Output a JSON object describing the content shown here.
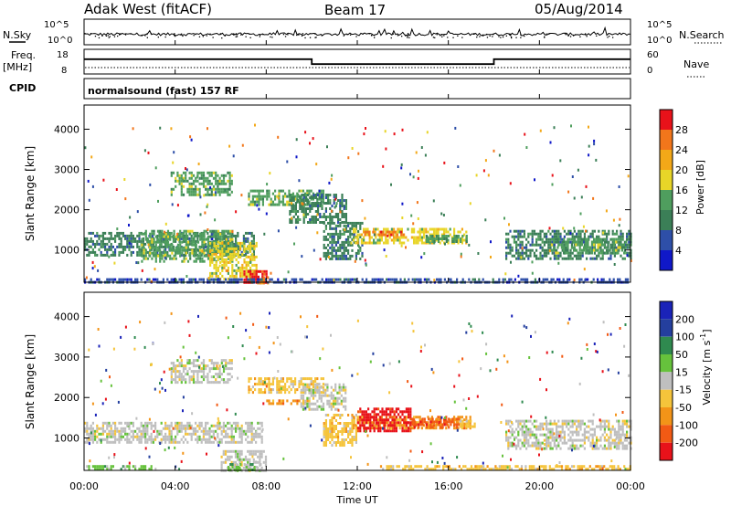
{
  "header": {
    "title": "Adak West (fitACF)",
    "beam": "Beam 17",
    "date": "05/Aug/2014"
  },
  "top_panels": {
    "nsky_label": "N.Sky",
    "nsearch_label": "N.Search",
    "freq_label": "Freq.",
    "freq_unit": "[MHz]",
    "nave_label": "Nave",
    "cpid_label": "CPID",
    "cpid_value": "normalsound (fast) 157 RF",
    "noise_ticks": [
      "10^5",
      "10^0"
    ],
    "freq_ticks": [
      "18",
      "8"
    ],
    "nave_ticks": [
      "60",
      "0"
    ],
    "freq_mhz": [
      {
        "start": "00:00",
        "end": "10:00",
        "value": 14
      },
      {
        "start": "10:00",
        "end": "18:00",
        "value": 11
      },
      {
        "start": "18:00",
        "end": "24:00",
        "value": 14
      }
    ]
  },
  "colors": {
    "power_scale": [
      "#1018c8",
      "#2e4fa8",
      "#3b7f57",
      "#4f9e5e",
      "#e8d528",
      "#f3a818",
      "#f2761b",
      "#e8121a"
    ],
    "velocity_scale": [
      "#e8121a",
      "#f25a14",
      "#f39418",
      "#f5c43b",
      "#bfbfbf",
      "#66c23c",
      "#2f8a4f",
      "#243f9e",
      "#1a23b8"
    ]
  },
  "chart_data": [
    {
      "type": "heatmap",
      "name": "power",
      "xlabel": "Time UT",
      "ylabel": "Slant Range [km]",
      "x_ticks": [
        "00:00",
        "04:00",
        "08:00",
        "12:00",
        "16:00",
        "20:00",
        "00:00"
      ],
      "x_range_hours": [
        0,
        24
      ],
      "y_ticks": [
        1000,
        2000,
        3000,
        4000
      ],
      "y_range_km": [
        200,
        4600
      ],
      "colorbar_label": "Power [dB]",
      "colorbar_ticks": [
        "4",
        "8",
        "12",
        "16",
        "20",
        "24",
        "28"
      ],
      "regions": [
        {
          "t0": 0.0,
          "t1": 7.5,
          "r0": 900,
          "r1": 1450,
          "level": 2
        },
        {
          "t0": 2.5,
          "t1": 6.5,
          "r0": 700,
          "r1": 1500,
          "level": 3
        },
        {
          "t0": 5.5,
          "t1": 7.6,
          "r0": 300,
          "r1": 1200,
          "level": 4
        },
        {
          "t0": 7.0,
          "t1": 8.0,
          "r0": 200,
          "r1": 500,
          "level": 7
        },
        {
          "t0": 7.5,
          "t1": 8.2,
          "r0": 200,
          "r1": 350,
          "level": 6
        },
        {
          "t0": 3.8,
          "t1": 6.5,
          "r0": 2400,
          "r1": 2950,
          "level": 3
        },
        {
          "t0": 7.2,
          "t1": 10.5,
          "r0": 2100,
          "r1": 2500,
          "level": 3
        },
        {
          "t0": 9.0,
          "t1": 11.5,
          "r0": 1700,
          "r1": 2400,
          "level": 2
        },
        {
          "t0": 10.5,
          "t1": 12.2,
          "r0": 800,
          "r1": 1700,
          "level": 2
        },
        {
          "t0": 11.8,
          "t1": 16.8,
          "r0": 1200,
          "r1": 1550,
          "level": 4
        },
        {
          "t0": 12.3,
          "t1": 14.0,
          "r0": 1350,
          "r1": 1480,
          "level": 6
        },
        {
          "t0": 15.0,
          "t1": 16.8,
          "r0": 1180,
          "r1": 1380,
          "level": 3
        },
        {
          "t0": 18.5,
          "t1": 24.0,
          "r0": 800,
          "r1": 1500,
          "level": 2
        },
        {
          "t0": 20.5,
          "t1": 23.8,
          "r0": 900,
          "r1": 1300,
          "level": 3
        },
        {
          "t0": 0.0,
          "t1": 24.0,
          "r0": 200,
          "r1": 300,
          "level": 1
        }
      ]
    },
    {
      "type": "heatmap",
      "name": "velocity",
      "xlabel": "Time UT",
      "ylabel": "Slant Range [km]",
      "x_ticks": [
        "00:00",
        "04:00",
        "08:00",
        "12:00",
        "16:00",
        "20:00",
        "00:00"
      ],
      "x_range_hours": [
        0,
        24
      ],
      "y_ticks": [
        1000,
        2000,
        3000,
        4000
      ],
      "y_range_km": [
        200,
        4600
      ],
      "colorbar_label_main": "Velocity [m s",
      "colorbar_label_exp": "-1",
      "colorbar_label_close": "]",
      "colorbar_ticks": [
        "200",
        "100",
        "50",
        "15",
        "-15",
        "-50",
        "-100",
        "-200"
      ],
      "regions": [
        {
          "t0": 0.0,
          "t1": 7.8,
          "r0": 900,
          "r1": 1400,
          "level": 4
        },
        {
          "t0": 3.8,
          "t1": 6.5,
          "r0": 2400,
          "r1": 2950,
          "level": 4
        },
        {
          "t0": 6.0,
          "t1": 8.0,
          "r0": 200,
          "r1": 700,
          "level": 4
        },
        {
          "t0": 6.3,
          "t1": 7.8,
          "r0": 200,
          "r1": 380,
          "level": 5
        },
        {
          "t0": 0.0,
          "t1": 3.0,
          "r0": 200,
          "r1": 330,
          "level": 5
        },
        {
          "t0": 7.2,
          "t1": 10.5,
          "r0": 2150,
          "r1": 2500,
          "level": 3
        },
        {
          "t0": 8.0,
          "t1": 9.8,
          "r0": 1850,
          "r1": 1950,
          "level": 2
        },
        {
          "t0": 9.5,
          "t1": 11.5,
          "r0": 1700,
          "r1": 2350,
          "level": 4
        },
        {
          "t0": 10.5,
          "t1": 12.0,
          "r0": 800,
          "r1": 1600,
          "level": 3
        },
        {
          "t0": 11.8,
          "t1": 17.0,
          "r0": 1250,
          "r1": 1550,
          "level": 2
        },
        {
          "t0": 12.0,
          "t1": 14.3,
          "r0": 1200,
          "r1": 1750,
          "level": 0
        },
        {
          "t0": 14.3,
          "t1": 16.5,
          "r0": 1280,
          "r1": 1500,
          "level": 1
        },
        {
          "t0": 16.5,
          "t1": 17.2,
          "r0": 1300,
          "r1": 1450,
          "level": 3
        },
        {
          "t0": 18.5,
          "t1": 24.0,
          "r0": 750,
          "r1": 1450,
          "level": 4
        },
        {
          "t0": 13.0,
          "t1": 24.0,
          "r0": 200,
          "r1": 330,
          "level": 3
        }
      ]
    }
  ]
}
